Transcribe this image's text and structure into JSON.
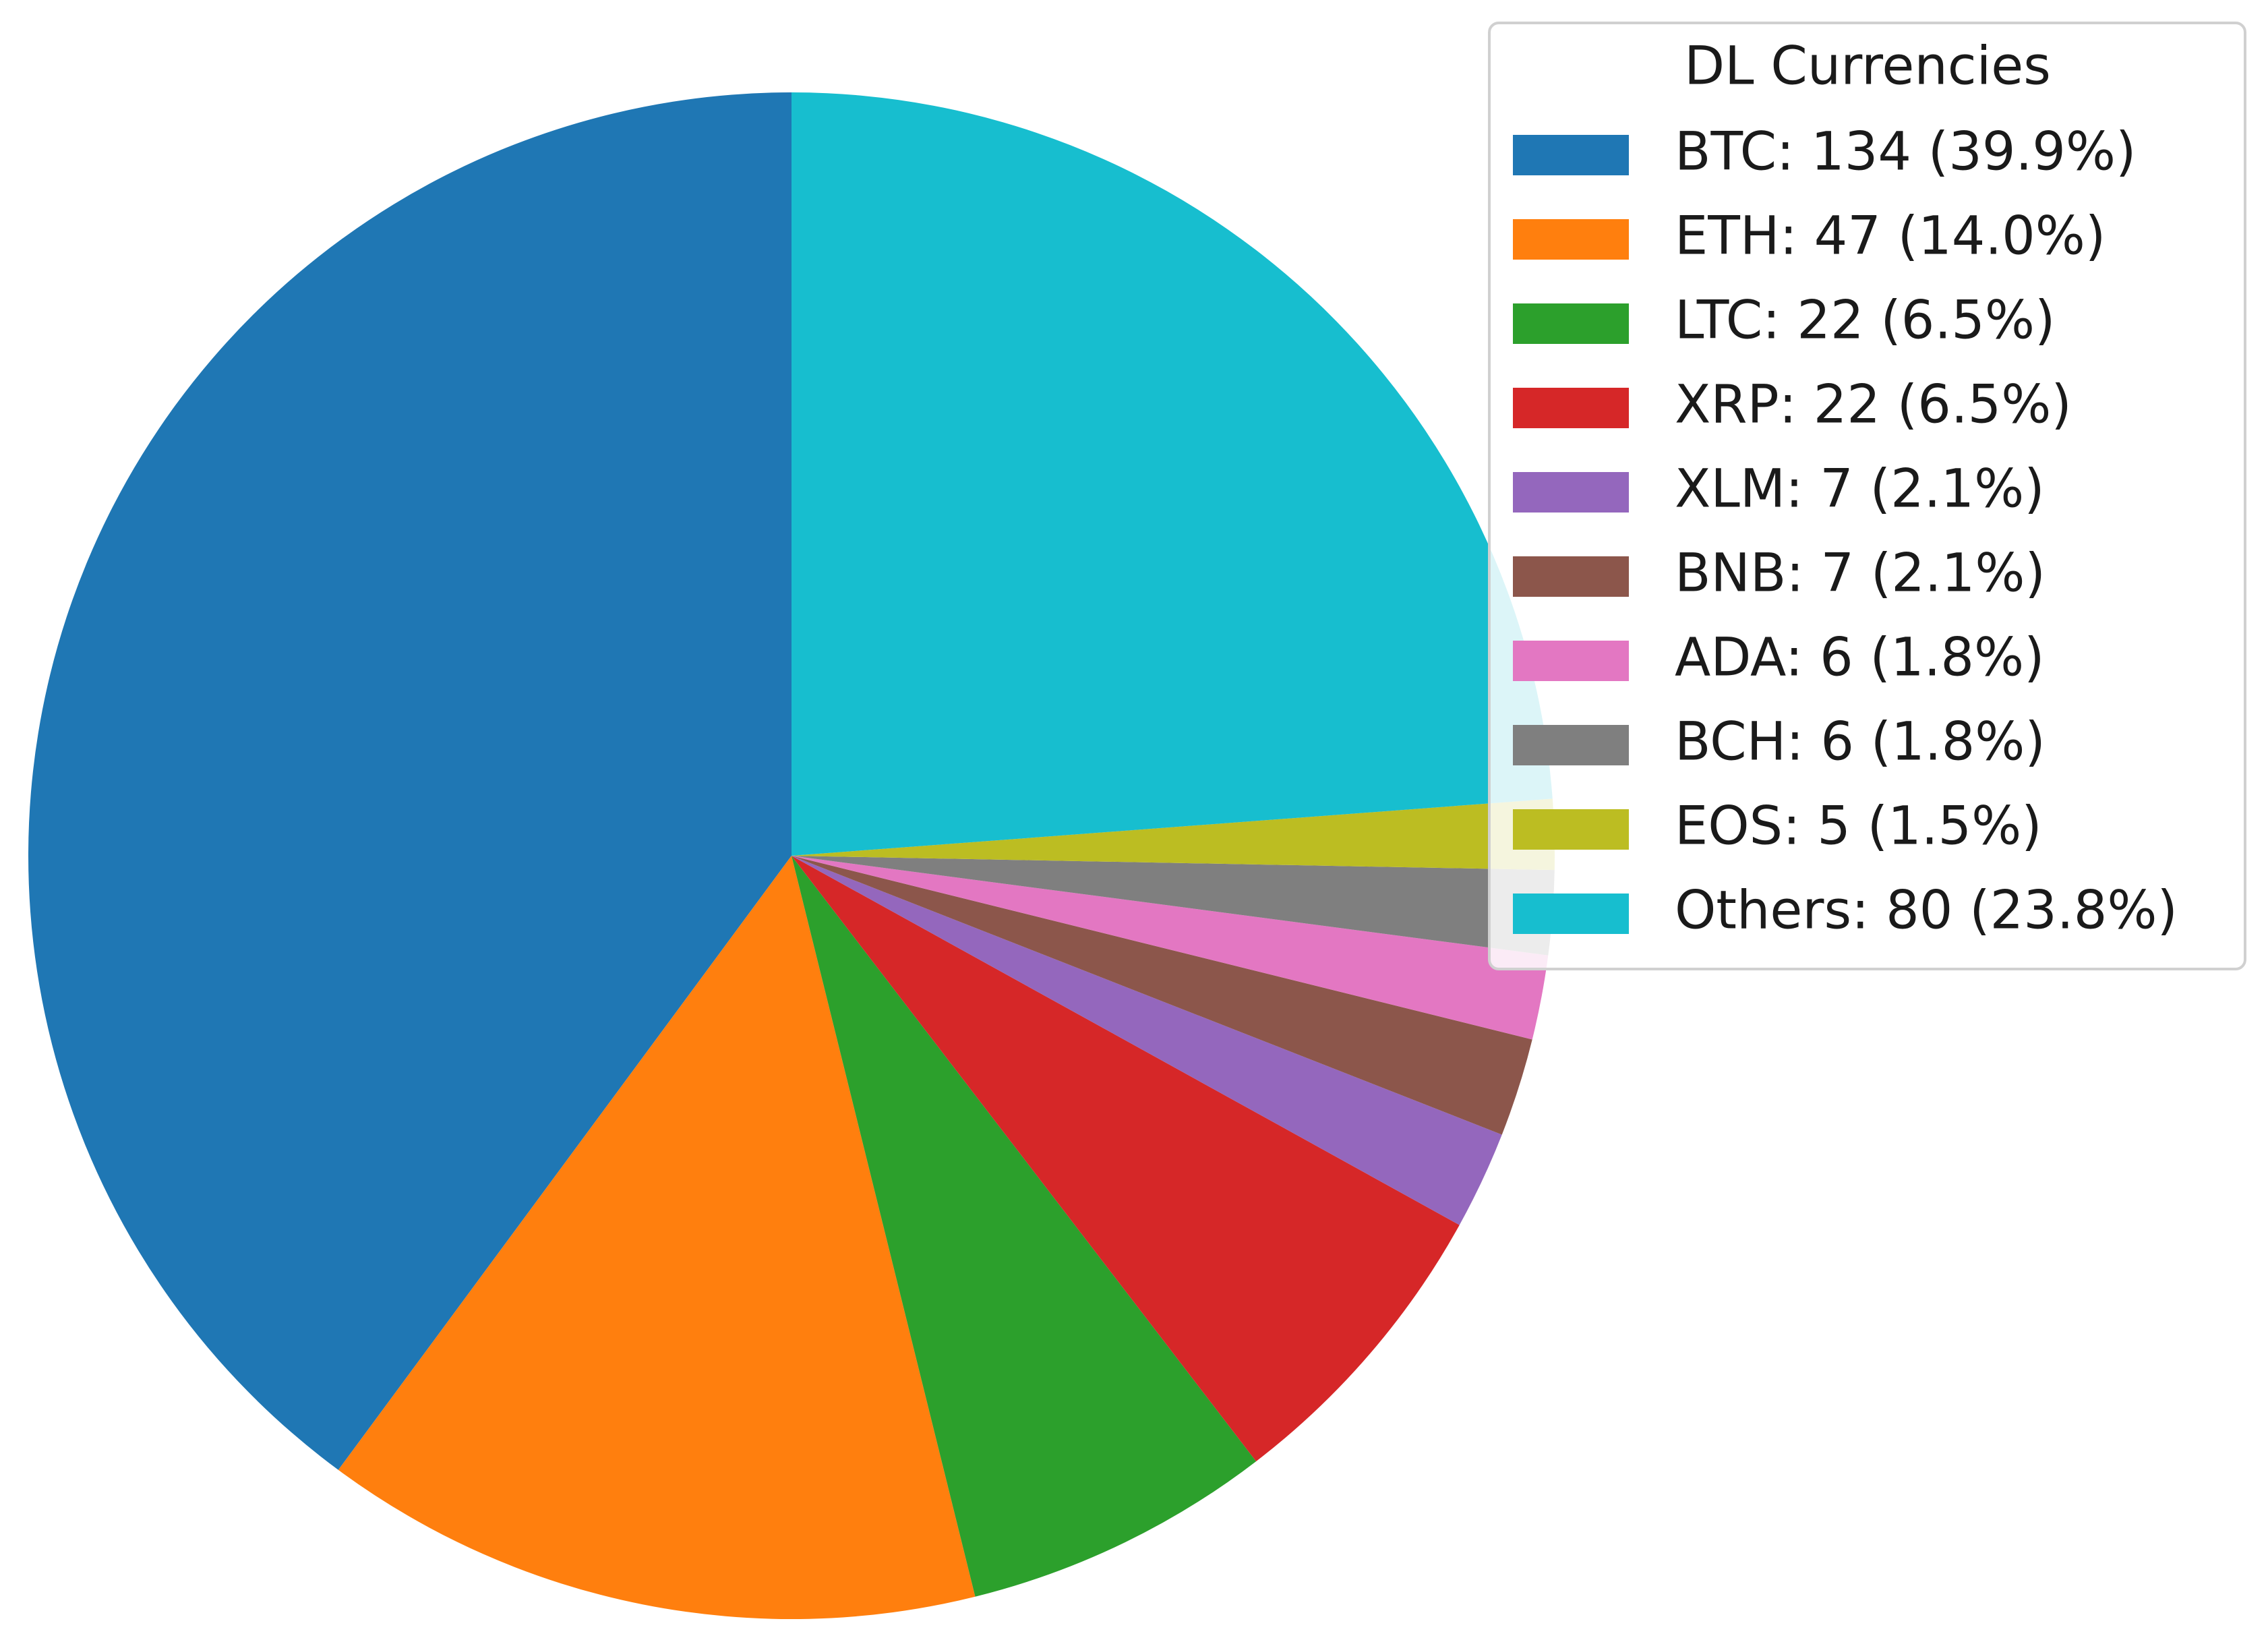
{
  "chart_data": {
    "type": "pie",
    "legend_title": "DL Currencies",
    "categories": [
      "BTC: 134 (39.9%)",
      "ETH: 47 (14.0%)",
      "LTC: 22 (6.5%)",
      "XRP: 22 (6.5%)",
      "XLM: 7 (2.1%)",
      "BNB: 7 (2.1%)",
      "ADA: 6 (1.8%)",
      "BCH: 6 (1.8%)",
      "EOS: 5 (1.5%)",
      "Others: 80 (23.8%)"
    ],
    "values": [
      134,
      47,
      22,
      22,
      7,
      7,
      6,
      6,
      5,
      80
    ],
    "colors": [
      "#1f77b4",
      "#ff7f0e",
      "#2ca02c",
      "#d62728",
      "#9467bd",
      "#8c564b",
      "#e377c2",
      "#7f7f7f",
      "#bcbd22",
      "#17becf"
    ],
    "start_angle": 90,
    "counterclock": true,
    "legend": "upper right"
  }
}
